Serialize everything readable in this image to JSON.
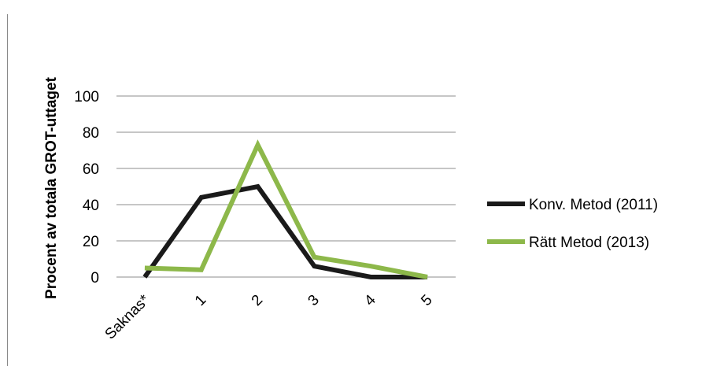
{
  "chart_data": {
    "type": "line",
    "ylabel": "Procent av totala GROT-uttaget",
    "xlabel": "",
    "title": "",
    "categories": [
      "Saknas*",
      "1",
      "2",
      "3",
      "4",
      "5"
    ],
    "ylim": [
      0,
      100
    ],
    "yticks": [
      0,
      20,
      40,
      60,
      80,
      100
    ],
    "grid": true,
    "legend_position": "right",
    "series": [
      {
        "name": "Konv. Metod (2011)",
        "color": "#1a1a1a",
        "values": [
          0,
          44,
          50,
          6,
          0,
          0
        ]
      },
      {
        "name": "Rätt Metod (2013)",
        "color": "#8db84a",
        "values": [
          5,
          4,
          73,
          11,
          6,
          0
        ]
      }
    ]
  }
}
